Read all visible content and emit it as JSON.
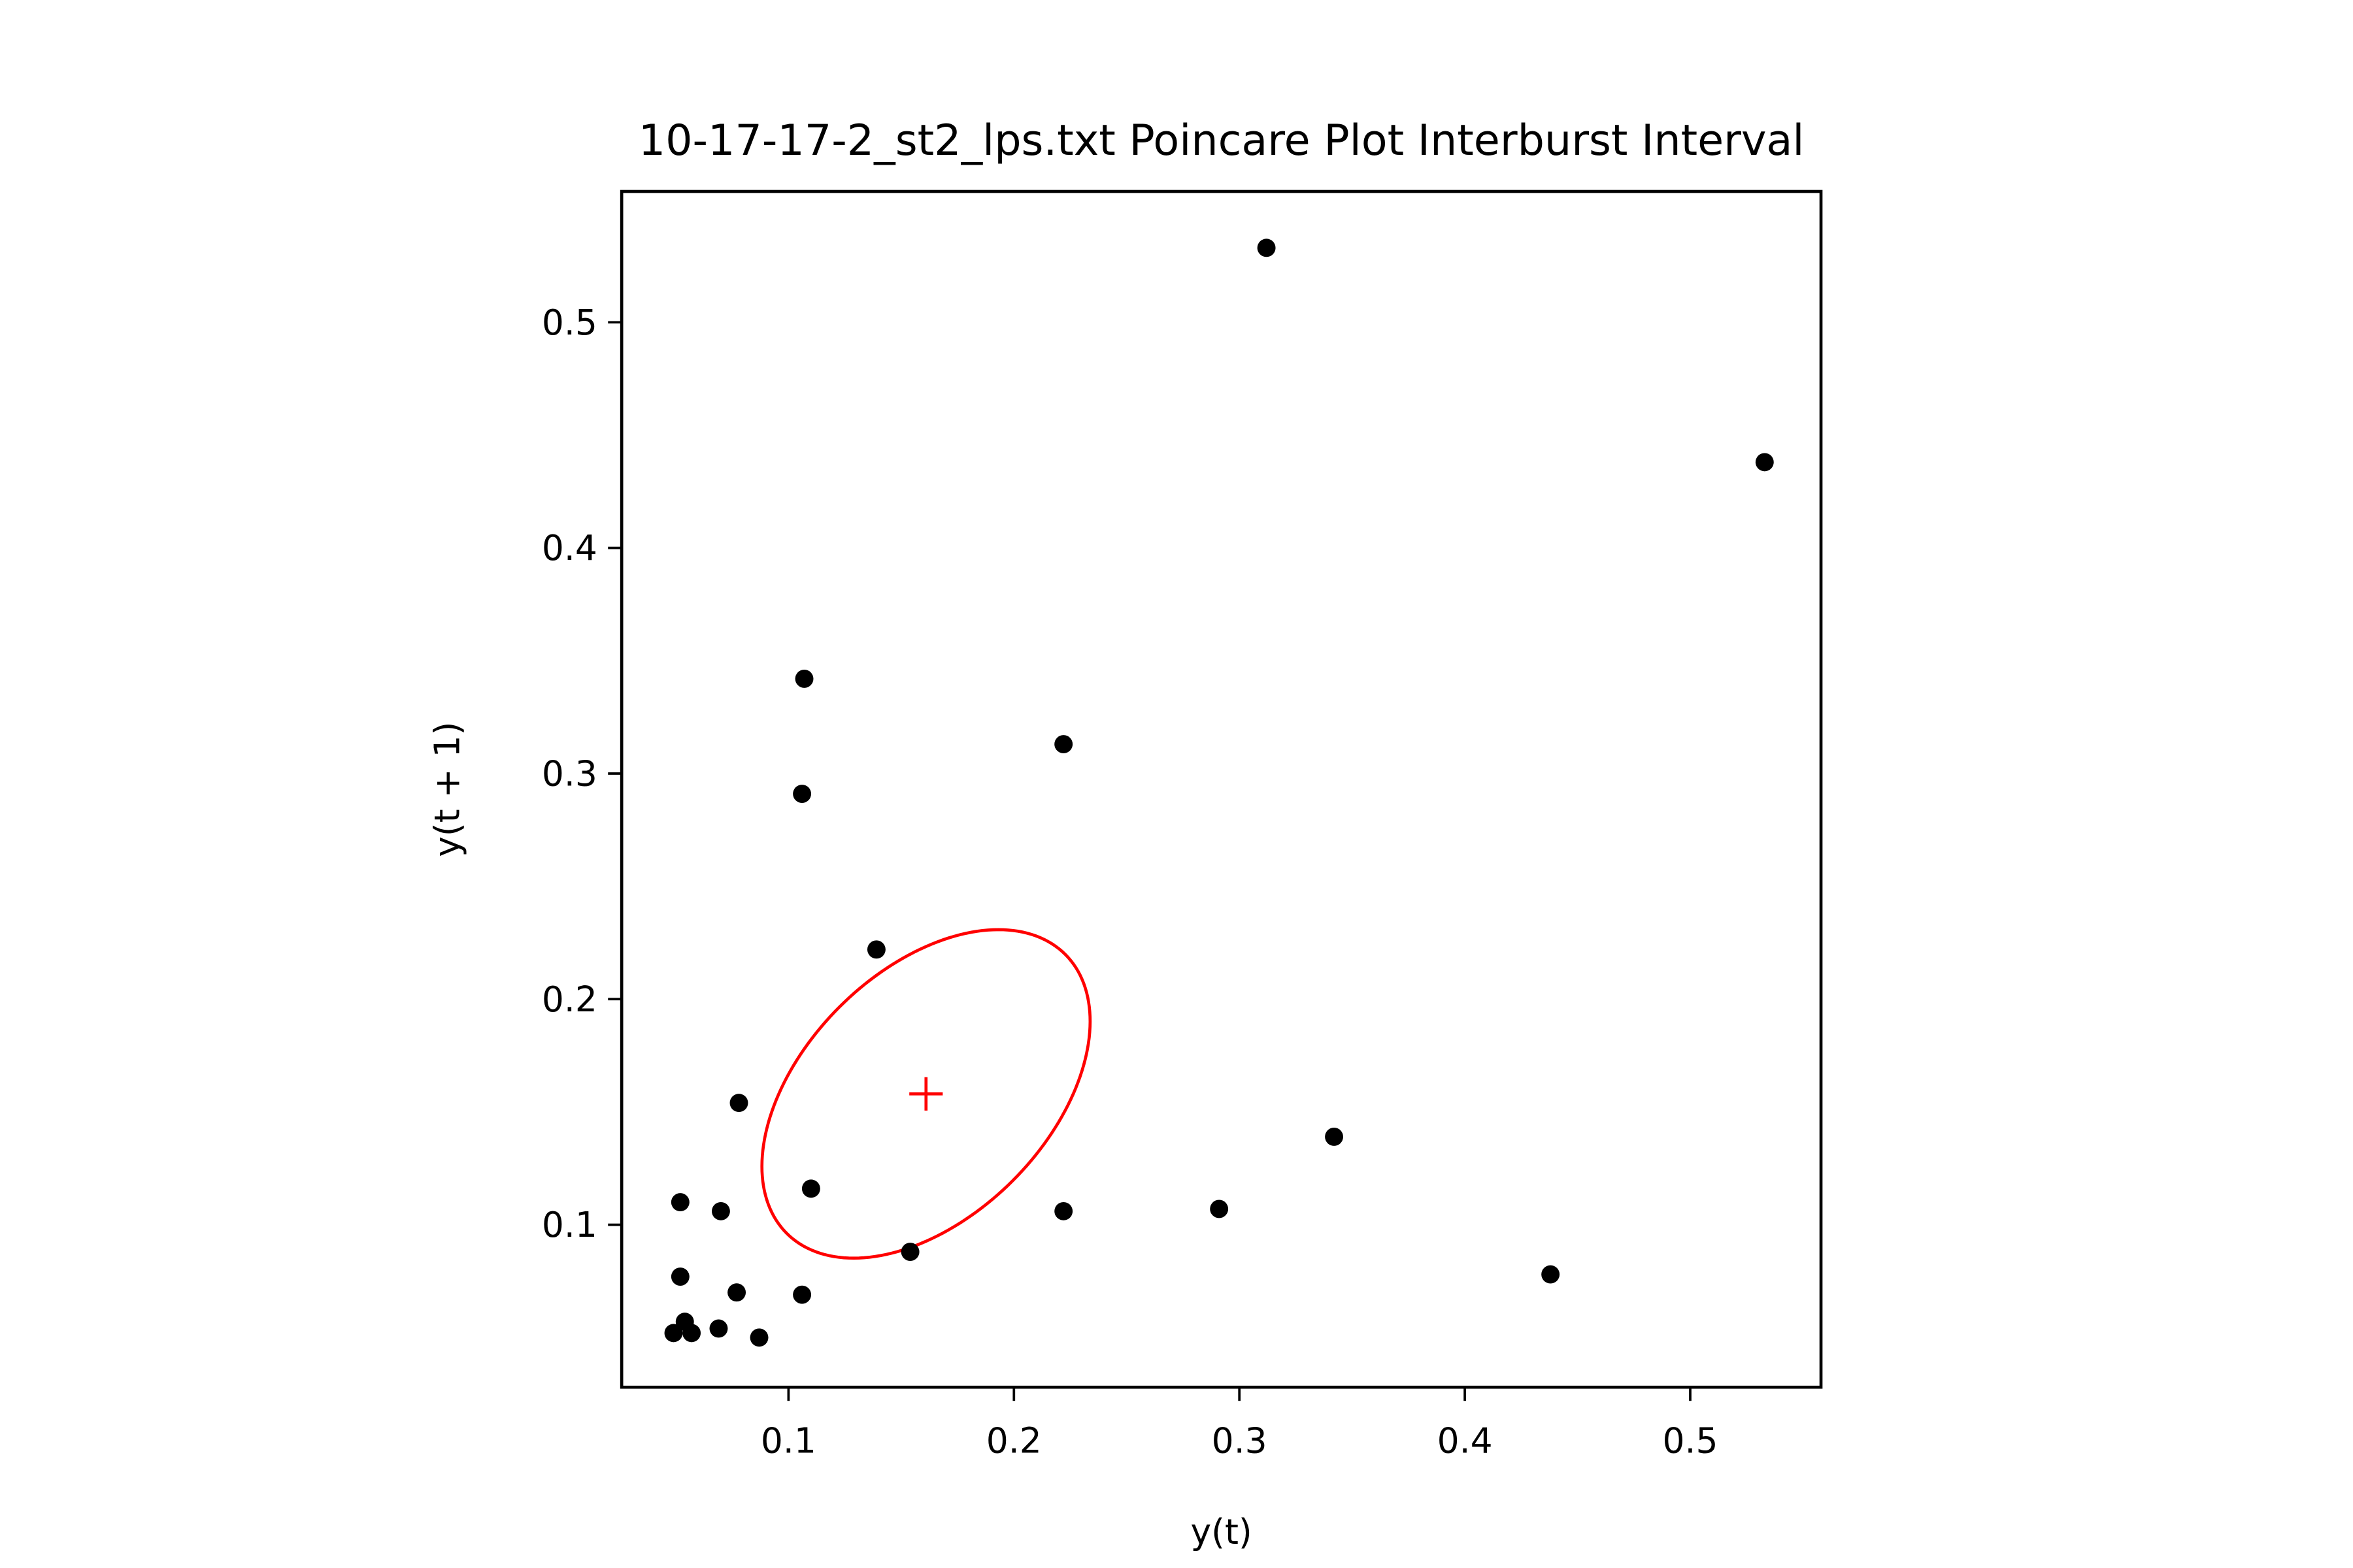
{
  "chart_data": {
    "type": "scatter",
    "title": "10-17-17-2_st2_lps.txt Poincare Plot Interburst Interval",
    "xlabel": "y(t)",
    "ylabel": "y(t + 1)",
    "xlim": [
      0.026,
      0.558
    ],
    "ylim": [
      0.028,
      0.558
    ],
    "xticks": [
      0.1,
      0.2,
      0.3,
      0.4,
      0.5
    ],
    "yticks": [
      0.1,
      0.2,
      0.3,
      0.4,
      0.5
    ],
    "xtick_labels": [
      "0.1",
      "0.2",
      "0.3",
      "0.4",
      "0.5"
    ],
    "ytick_labels": [
      "0.1",
      "0.2",
      "0.3",
      "0.4",
      "0.5"
    ],
    "grid": false,
    "series": [
      {
        "color": "#000000",
        "marker": "circle",
        "points": [
          {
            "x": 0.312,
            "y": 0.533
          },
          {
            "x": 0.533,
            "y": 0.438
          },
          {
            "x": 0.107,
            "y": 0.342
          },
          {
            "x": 0.222,
            "y": 0.313
          },
          {
            "x": 0.106,
            "y": 0.291
          },
          {
            "x": 0.139,
            "y": 0.222
          },
          {
            "x": 0.078,
            "y": 0.154
          },
          {
            "x": 0.342,
            "y": 0.139
          },
          {
            "x": 0.11,
            "y": 0.116
          },
          {
            "x": 0.052,
            "y": 0.11
          },
          {
            "x": 0.07,
            "y": 0.106
          },
          {
            "x": 0.222,
            "y": 0.106
          },
          {
            "x": 0.291,
            "y": 0.107
          },
          {
            "x": 0.154,
            "y": 0.088
          },
          {
            "x": 0.438,
            "y": 0.078
          },
          {
            "x": 0.052,
            "y": 0.077
          },
          {
            "x": 0.077,
            "y": 0.07
          },
          {
            "x": 0.106,
            "y": 0.069
          },
          {
            "x": 0.054,
            "y": 0.057
          },
          {
            "x": 0.069,
            "y": 0.054
          },
          {
            "x": 0.049,
            "y": 0.052
          },
          {
            "x": 0.057,
            "y": 0.052
          },
          {
            "x": 0.087,
            "y": 0.05
          }
        ]
      }
    ],
    "centroid": {
      "x": 0.161,
      "y": 0.158,
      "color": "#ff0000",
      "marker": "+"
    },
    "ellipse": {
      "color": "#ff0000",
      "center": {
        "x": 0.161,
        "y": 0.158
      },
      "major_axis_half_length": 0.0874,
      "minor_axis_half_length": 0.0544,
      "angle_deg": 45
    }
  }
}
